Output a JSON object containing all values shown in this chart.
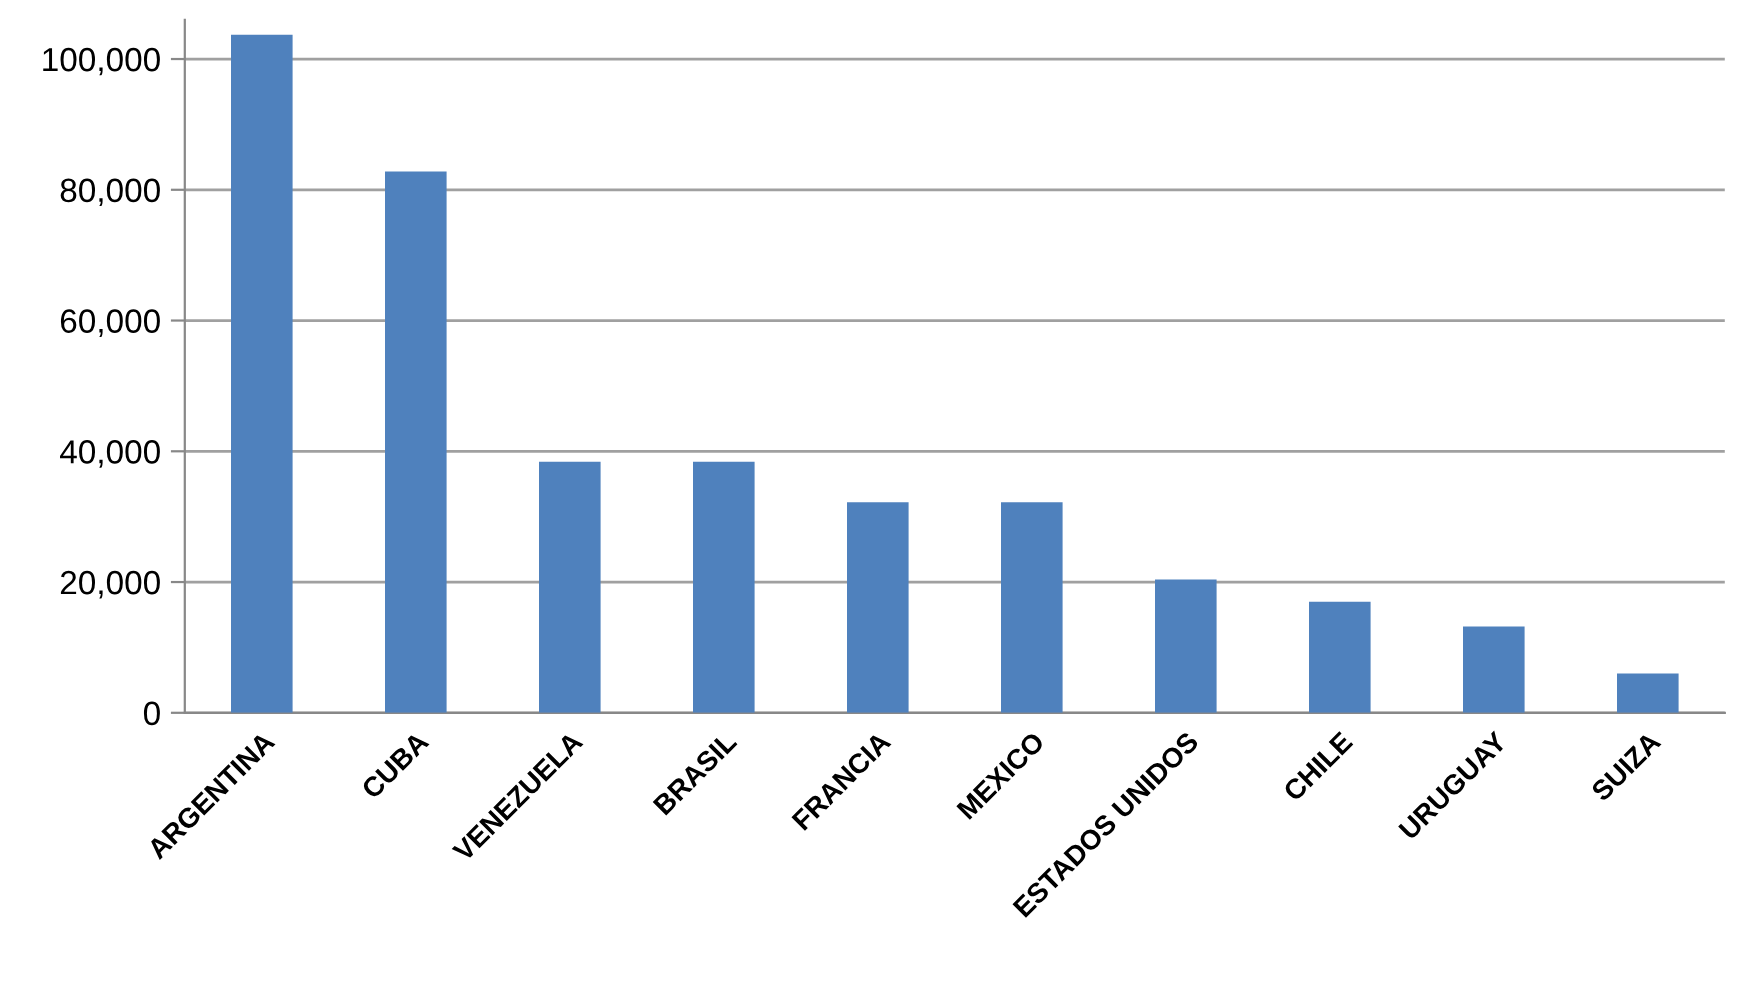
{
  "chart_data": {
    "type": "bar",
    "categories": [
      "ARGENTINA",
      "CUBA",
      "VENEZUELA",
      "BRASIL",
      "FRANCIA",
      "MEXICO",
      "ESTADOS UNIDOS",
      "CHILE",
      "URUGUAY",
      "SUIZA"
    ],
    "values": [
      103700,
      82800,
      38400,
      38400,
      32200,
      32200,
      20400,
      17000,
      13200,
      6000
    ],
    "color": "#4f81bd",
    "ylim": [
      0,
      106000
    ],
    "yticks": [
      {
        "value": 0,
        "label": "0"
      },
      {
        "value": 20000,
        "label": "20,000"
      },
      {
        "value": 40000,
        "label": "40,000"
      },
      {
        "value": 60000,
        "label": "60,000"
      },
      {
        "value": 80000,
        "label": "80,000"
      },
      {
        "value": 100000,
        "label": "100,000"
      }
    ],
    "grid": "y"
  }
}
